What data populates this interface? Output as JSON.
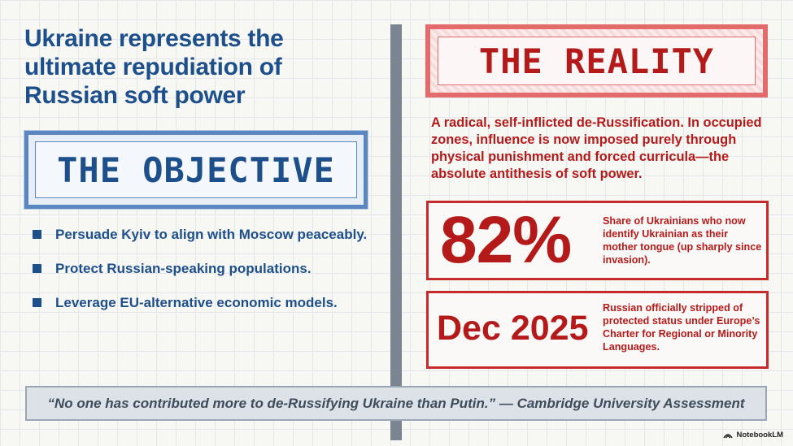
{
  "headline": "Ukraine represents the ultimate repudiation of Russian soft power",
  "objective": {
    "title": "THE OBJECTIVE",
    "bullets": [
      "Persuade Kyiv to align with Moscow peaceably.",
      "Protect Russian-speaking populations.",
      "Leverage EU-alternative economic models."
    ]
  },
  "reality": {
    "title": "THE REALITY",
    "text": "A radical, self-inflicted de-Russification. In occupied zones, influence is now imposed purely through physical punishment and forced curricula—the absolute antithesis of soft power.",
    "stats": [
      {
        "value": "82%",
        "description": "Share of Ukrainians who now identify Ukrainian as their mother tongue (up sharply since invasion)."
      },
      {
        "value": "Dec 2025",
        "description": "Russian officially stripped of protected status under Europe’s Charter for Regional or Minority Languages."
      }
    ]
  },
  "quote": {
    "text": "“No one has contributed more to de-Russifying Ukraine than Putin.”",
    "attribution": "— Cambridge University Assessment"
  },
  "watermark": "NotebookLM",
  "colors": {
    "blue": "#1d4f8b",
    "red": "#b51a1a",
    "divider": "#7a8591"
  }
}
